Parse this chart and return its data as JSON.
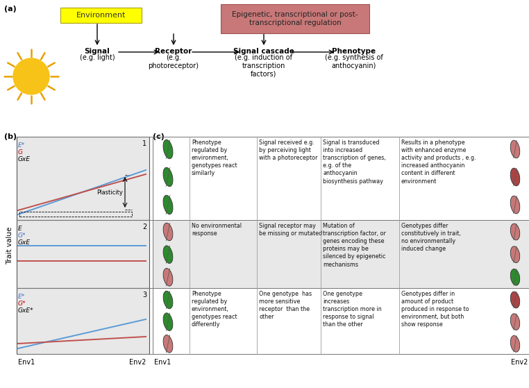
{
  "bg_color": "#ffffff",
  "panel_a_label": "(a)",
  "panel_b_label": "(b)",
  "panel_c_label": "(c)",
  "env_box_text": "Environment",
  "epi_box_text": "Epigenetic, transcriptional or post-\ntranscriptional regulation",
  "signal_label": "Signal",
  "signal_sub": "(e.g. light)",
  "receptor_label": "Receptor",
  "receptor_sub": "(e.g.\nphotoreceptor)",
  "cascade_label": "Signal cascade",
  "cascade_sub": "(e.g. induction of\ntranscription\nfactors)",
  "phenotype_label": "Phenotype",
  "phenotype_sub": "(e.g. synthesis of\nanthocyanin)",
  "trait_value_label": "Trait value",
  "env1_label": "Env1",
  "env2_label": "Env2",
  "row1_labels": [
    "E*",
    "G",
    "GxE"
  ],
  "row1_label_colors": [
    "#4472c4",
    "#c00000",
    "#000000"
  ],
  "row2_labels": [
    "E",
    "G*",
    "GxE"
  ],
  "row2_label_colors": [
    "#000000",
    "#4472c4",
    "#000000"
  ],
  "row3_labels": [
    "E*",
    "G*",
    "GxE*"
  ],
  "row3_label_colors": [
    "#4472c4",
    "#c00000",
    "#000000"
  ],
  "row_numbers": [
    "1",
    "2",
    "3"
  ],
  "row1_text1": "Phenotype\nregulated by\nenvironment,\ngenotypes react\nsimilarly",
  "row1_text2": "Signal received e.g.\nby perceiving light\nwith a photoreceptor",
  "row1_text3": "Signal is transduced\ninto increased\ntranscription of genes,\ne.g. of the\nanthocyanin\nbiosynthesis pathway",
  "row1_text4": "Results in a phenotype\nwith enhanced enzyme\nactivity and products , e.g.\nincreased anthocyanin\ncontent in different\nenvironment",
  "row2_text1": "No environmental\nresponse",
  "row2_text2": "Signal receptor may\nbe missing or mutated",
  "row2_text3": "Mutation of\ntranscription factor, or\ngenes encoding these\nproteins may be\nsilenced by epigenetic\nmechanisms",
  "row2_text4": "Genotypes differ\nconstitutively in trait,\nno environmentally\ninduced change",
  "row3_text1": "Phenotype\nregulated by\nenvironment,\ngenotypes react\ndifferently",
  "row3_text2": "One genotype  has\nmore sensitive\nreceptor  than the\nother",
  "row3_text3": "One genotype\nincreases\ntranscription more in\nresponse to signal\nthan the other",
  "row3_text4": "Genotypes differ in\namount of product\nproduced in response to\nenvironment, but both\nshow response",
  "gray_bg": "#e8e8e8",
  "white_bg": "#ffffff",
  "line_blue": "#5b9bd5",
  "line_red": "#c0504d",
  "plasticity_text": "Plasticity"
}
